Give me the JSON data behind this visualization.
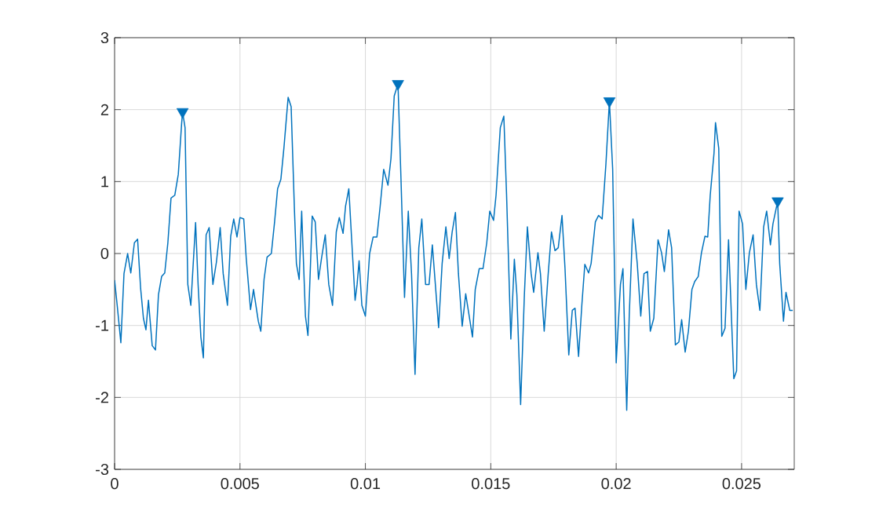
{
  "chart_data": {
    "type": "line",
    "xlim": [
      0,
      0.0271
    ],
    "ylim": [
      -3,
      3
    ],
    "xticks": [
      0,
      0.005,
      0.01,
      0.015,
      0.02,
      0.025
    ],
    "yticks": [
      -3,
      -2,
      -1,
      0,
      1,
      2,
      3
    ],
    "grid": true,
    "series": [
      {
        "color": "#0072bd",
        "marker": "none",
        "line_style": "solid",
        "x": [
          0,
          0.000104,
          0.00025,
          0.000375,
          0.00052,
          0.000646,
          0.00079,
          0.000917,
          0.00104,
          0.00115,
          0.00125,
          0.00135,
          0.0015,
          0.00163,
          0.00175,
          0.001875,
          0.002,
          0.002125,
          0.00225,
          0.0024,
          0.00254,
          0.00267,
          0.00271,
          0.00281,
          0.00292,
          0.00304,
          0.00323,
          0.00333,
          0.00344,
          0.00354,
          0.00365,
          0.00377,
          0.00392,
          0.00406,
          0.00421,
          0.00433,
          0.0045,
          0.00463,
          0.00475,
          0.00488,
          0.005,
          0.00515,
          0.00525,
          0.00542,
          0.00554,
          0.00573,
          0.00583,
          0.00596,
          0.00608,
          0.00625,
          0.00638,
          0.0065,
          0.00663,
          0.00675,
          0.00692,
          0.00704,
          0.00717,
          0.00725,
          0.00736,
          0.00746,
          0.00761,
          0.00771,
          0.00788,
          0.008,
          0.00813,
          0.00825,
          0.0084,
          0.00854,
          0.00869,
          0.00884,
          0.00896,
          0.00911,
          0.00921,
          0.00934,
          0.00946,
          0.00959,
          0.00967,
          0.00975,
          0.00986,
          0.01,
          0.01017,
          0.01031,
          0.01046,
          0.01059,
          0.01073,
          0.0109,
          0.01102,
          0.01115,
          0.0113,
          0.01142,
          0.01156,
          0.01171,
          0.01184,
          0.01198,
          0.01213,
          0.01225,
          0.0124,
          0.01254,
          0.01267,
          0.01279,
          0.01292,
          0.01306,
          0.01321,
          0.01334,
          0.01346,
          0.01359,
          0.01371,
          0.01386,
          0.014,
          0.01427,
          0.01438,
          0.01454,
          0.01469,
          0.01484,
          0.01496,
          0.01511,
          0.01521,
          0.01538,
          0.01552,
          0.01563,
          0.0158,
          0.01594,
          0.01604,
          0.01619,
          0.01634,
          0.01646,
          0.01661,
          0.01671,
          0.01688,
          0.01698,
          0.01713,
          0.01729,
          0.01742,
          0.01756,
          0.01769,
          0.01784,
          0.01796,
          0.01811,
          0.01825,
          0.01836,
          0.0185,
          0.01863,
          0.01875,
          0.0189,
          0.019,
          0.01917,
          0.0193,
          0.01944,
          0.01959,
          0.01973,
          0.01986,
          0.02,
          0.02017,
          0.02027,
          0.02042,
          0.02052,
          0.02067,
          0.02084,
          0.02098,
          0.02111,
          0.02125,
          0.02136,
          0.0215,
          0.02167,
          0.02181,
          0.02192,
          0.02209,
          0.02221,
          0.02236,
          0.0225,
          0.02261,
          0.02275,
          0.02288,
          0.02302,
          0.02313,
          0.02327,
          0.0234,
          0.02354,
          0.02365,
          0.02375,
          0.0239,
          0.02396,
          0.02409,
          0.02421,
          0.02434,
          0.02448,
          0.02459,
          0.02469,
          0.0248,
          0.0249,
          0.02504,
          0.02517,
          0.02531,
          0.02546,
          0.02559,
          0.02573,
          0.02588,
          0.026,
          0.02615,
          0.02625,
          0.02644,
          0.02652,
          0.02667,
          0.02677,
          0.02692,
          0.02704
        ],
        "values": [
          -0.37,
          -0.72,
          -1.24,
          -0.28,
          0.0,
          -0.27,
          0.15,
          0.2,
          -0.49,
          -0.9,
          -1.06,
          -0.65,
          -1.28,
          -1.34,
          -0.57,
          -0.32,
          -0.27,
          0.15,
          0.77,
          0.81,
          1.1,
          1.79,
          1.97,
          1.75,
          -0.43,
          -0.72,
          0.43,
          -0.43,
          -1.16,
          -1.45,
          0.26,
          0.36,
          -0.43,
          -0.12,
          0.36,
          -0.28,
          -0.72,
          0.24,
          0.48,
          0.23,
          0.5,
          0.48,
          -0.07,
          -0.78,
          -0.5,
          -0.94,
          -1.08,
          -0.36,
          -0.05,
          0.0,
          0.44,
          0.9,
          1.03,
          1.46,
          2.17,
          2.04,
          0.62,
          -0.14,
          -0.36,
          0.59,
          -0.87,
          -1.14,
          0.52,
          0.44,
          -0.36,
          -0.07,
          0.26,
          -0.43,
          -0.72,
          0.3,
          0.5,
          0.28,
          0.66,
          0.9,
          0.15,
          -0.65,
          -0.43,
          -0.1,
          -0.72,
          -0.87,
          0.0,
          0.23,
          0.23,
          0.66,
          1.17,
          0.95,
          1.32,
          2.19,
          2.36,
          1.03,
          -0.61,
          0.59,
          -0.28,
          -1.68,
          0.08,
          0.48,
          -0.43,
          -0.43,
          0.12,
          -0.43,
          -1.03,
          -0.14,
          0.37,
          -0.07,
          0.3,
          0.57,
          -0.28,
          -1.01,
          -0.56,
          -1.16,
          -0.5,
          -0.21,
          -0.21,
          0.15,
          0.59,
          0.46,
          0.81,
          1.75,
          1.91,
          0.81,
          -1.19,
          -0.08,
          -0.57,
          -2.1,
          -0.57,
          0.37,
          -0.28,
          -0.54,
          0.01,
          -0.28,
          -1.08,
          -0.28,
          0.3,
          0.04,
          0.08,
          0.53,
          -0.21,
          -1.41,
          -0.79,
          -0.76,
          -1.43,
          -0.72,
          -0.15,
          -0.27,
          -0.14,
          0.44,
          0.53,
          0.48,
          1.24,
          2.12,
          1.17,
          -1.52,
          -0.43,
          -0.21,
          -2.18,
          -0.87,
          0.48,
          -0.14,
          -0.87,
          -0.28,
          -0.25,
          -1.08,
          -0.9,
          0.19,
          0.01,
          -0.25,
          0.33,
          0.08,
          -1.27,
          -1.23,
          -0.92,
          -1.37,
          -1.08,
          -0.5,
          -0.39,
          -0.32,
          0.01,
          0.24,
          0.23,
          0.81,
          1.39,
          1.82,
          1.46,
          -1.15,
          -1.04,
          0.19,
          -0.83,
          -1.74,
          -1.63,
          0.59,
          0.41,
          -0.5,
          0.01,
          0.26,
          -0.43,
          -0.79,
          0.37,
          0.59,
          0.12,
          0.41,
          0.73,
          -0.14,
          -0.94,
          -0.54,
          -0.79,
          -0.79
        ]
      },
      {
        "type": "scatter",
        "color": "#0072bd",
        "marker": "triangle",
        "x": [
          0.00271,
          0.0113,
          0.01973,
          0.02644
        ],
        "values": [
          1.97,
          2.36,
          2.12,
          0.73
        ]
      }
    ]
  }
}
